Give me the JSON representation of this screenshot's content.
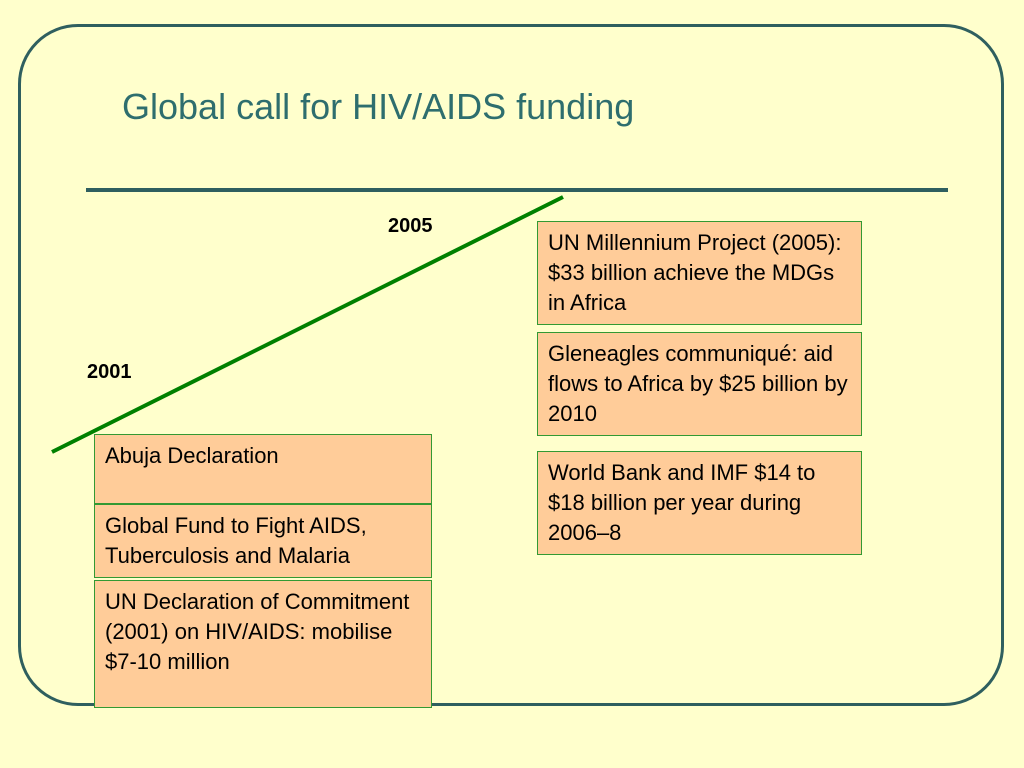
{
  "slide": {
    "title": "Global call for HIV/AIDS funding",
    "year_start": "2001",
    "year_end": "2005",
    "left_boxes": [
      {
        "text": "Abuja Declaration"
      },
      {
        "text": "Global Fund to Fight AIDS, Tuberculosis and Malaria"
      },
      {
        "text": "UN Declaration of Commitment (2001) on HIV/AIDS: mobilise $7-10 million"
      }
    ],
    "right_boxes": [
      {
        "text": "UN Millennium Project (2005): $33 billion achieve the MDGs in Africa"
      },
      {
        "text": "Gleneagles communiqué: aid flows to Africa by $25 billion by 2010"
      },
      {
        "text": "World Bank and IMF $14 to $18 billion per year during 2006–8"
      }
    ]
  },
  "colors": {
    "background": "#FFFFCC",
    "frame": "#2F5F5F",
    "title": "#2E6E6E",
    "trend_line": "#008000",
    "box_fill": "#FFCC99",
    "box_border": "#339933"
  }
}
